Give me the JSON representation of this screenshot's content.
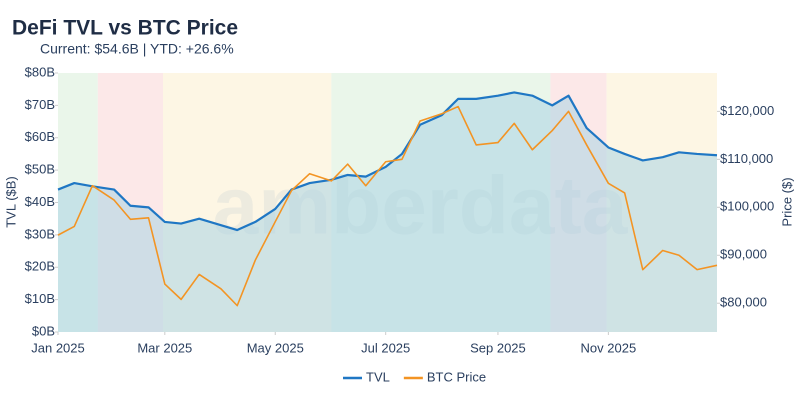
{
  "chart_data": {
    "type": "line",
    "title": "DeFi TVL vs BTC Price",
    "subtitle": "Current: $54.6B | YTD: +26.6%",
    "watermark": "amberdata",
    "y_label": "TVL ($B)",
    "y2_label": "Price ($)",
    "x": [
      "2025-01-01",
      "2025-01-10",
      "2025-01-20",
      "2025-02-01",
      "2025-02-10",
      "2025-02-20",
      "2025-03-01",
      "2025-03-10",
      "2025-03-20",
      "2025-04-01",
      "2025-04-10",
      "2025-04-20",
      "2025-05-01",
      "2025-05-10",
      "2025-05-20",
      "2025-06-01",
      "2025-06-10",
      "2025-06-20",
      "2025-07-01",
      "2025-07-10",
      "2025-07-20",
      "2025-08-01",
      "2025-08-10",
      "2025-08-20",
      "2025-09-01",
      "2025-09-10",
      "2025-09-20",
      "2025-10-01",
      "2025-10-10",
      "2025-10-20",
      "2025-11-01",
      "2025-11-10",
      "2025-11-20",
      "2025-12-01",
      "2025-12-10",
      "2025-12-20",
      "2025-12-31"
    ],
    "series": [
      {
        "name": "TVL",
        "color": "#1f77c4",
        "area_color": "#a9d3e3",
        "axis": "y",
        "values": [
          44,
          46,
          45,
          44,
          39,
          38.5,
          34,
          33.5,
          35,
          33,
          31.5,
          34,
          38,
          44,
          46,
          47,
          48.5,
          48,
          51,
          55,
          64,
          67,
          72,
          72,
          73,
          74,
          73,
          70,
          73,
          63,
          57,
          55,
          53,
          54,
          55.5,
          55,
          54.6
        ]
      },
      {
        "name": "BTC Price",
        "color": "#f39423",
        "axis": "y2",
        "values": [
          94200,
          96000,
          104500,
          101500,
          97500,
          97800,
          84000,
          80800,
          86000,
          83000,
          79500,
          89000,
          97000,
          103500,
          107000,
          105500,
          109000,
          104500,
          109500,
          110000,
          118000,
          119500,
          121000,
          113000,
          113500,
          117500,
          112000,
          116000,
          120000,
          113000,
          105000,
          103000,
          87000,
          91000,
          90000,
          87000,
          87900
        ]
      }
    ],
    "regions": [
      {
        "start": "2025-01-01",
        "end": "2025-01-23",
        "color": "#e6f4e6"
      },
      {
        "start": "2025-01-23",
        "end": "2025-02-28",
        "color": "#fbe4e4"
      },
      {
        "start": "2025-02-28",
        "end": "2025-06-01",
        "color": "#fdf5df"
      },
      {
        "start": "2025-06-01",
        "end": "2025-09-30",
        "color": "#e6f4e6"
      },
      {
        "start": "2025-09-30",
        "end": "2025-10-31",
        "color": "#fbe4e4"
      },
      {
        "start": "2025-10-31",
        "end": "2025-12-31",
        "color": "#fdf5df"
      }
    ],
    "xlim": [
      "2025-01-01",
      "2025-12-31"
    ],
    "xticks": [
      {
        "value": "2025-01-01",
        "label": "Jan 2025"
      },
      {
        "value": "2025-03-01",
        "label": "Mar 2025"
      },
      {
        "value": "2025-05-01",
        "label": "May 2025"
      },
      {
        "value": "2025-07-01",
        "label": "Jul 2025"
      },
      {
        "value": "2025-09-01",
        "label": "Sep 2025"
      },
      {
        "value": "2025-11-01",
        "label": "Nov 2025"
      }
    ],
    "ylim": [
      0,
      80
    ],
    "yticks": [
      {
        "value": 0,
        "label": "$0B"
      },
      {
        "value": 10,
        "label": "$10B"
      },
      {
        "value": 20,
        "label": "$20B"
      },
      {
        "value": 30,
        "label": "$30B"
      },
      {
        "value": 40,
        "label": "$40B"
      },
      {
        "value": 50,
        "label": "$50B"
      },
      {
        "value": 60,
        "label": "$60B"
      },
      {
        "value": 70,
        "label": "$70B"
      },
      {
        "value": 80,
        "label": "$80B"
      }
    ],
    "y2lim": [
      74000,
      128000
    ],
    "y2ticks": [
      {
        "value": 80000,
        "label": "$80,000"
      },
      {
        "value": 90000,
        "label": "$90,000"
      },
      {
        "value": 100000,
        "label": "$100,000"
      },
      {
        "value": 110000,
        "label": "$110,000"
      },
      {
        "value": 120000,
        "label": "$120,000"
      }
    ],
    "legend": "bottom"
  }
}
